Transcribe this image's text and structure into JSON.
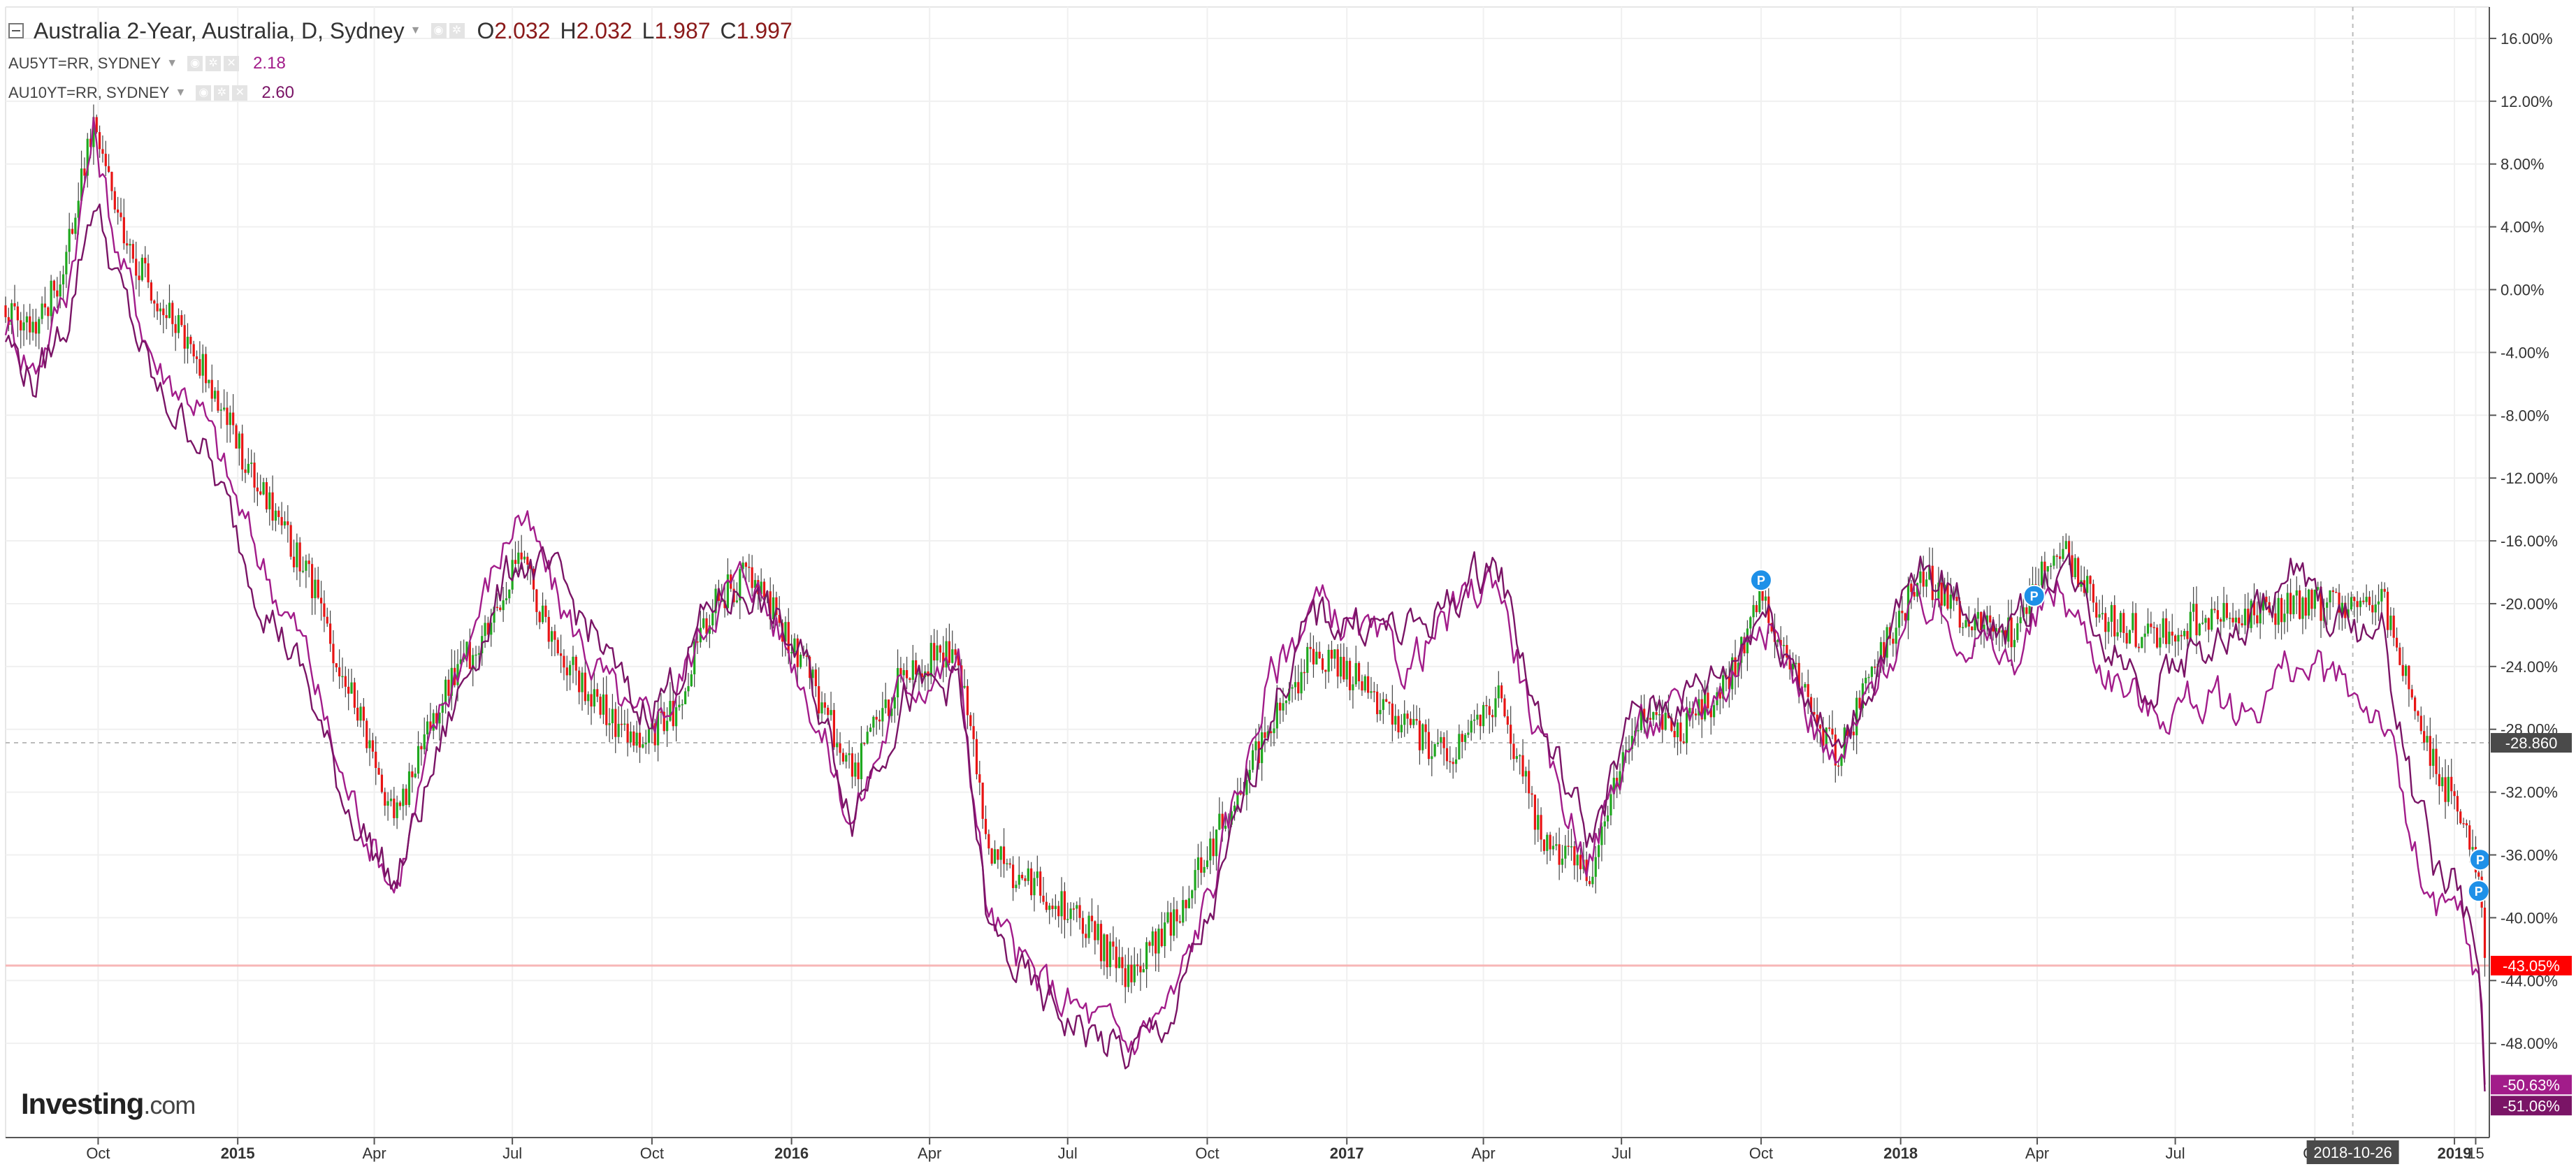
{
  "legend": {
    "main_title": "Australia 2-Year, Australia, D, Sydney",
    "ohlc": [
      {
        "label": "O",
        "value": "2.032"
      },
      {
        "label": "H",
        "value": "2.032"
      },
      {
        "label": "L",
        "value": "1.987"
      },
      {
        "label": "C",
        "value": "1.997"
      }
    ],
    "series": [
      {
        "name": "AU5YT=RR, SYDNEY",
        "value": "2.18",
        "color": "#a21c8a"
      },
      {
        "name": "AU10YT=RR, SYDNEY",
        "value": "2.60",
        "color": "#7a1466"
      }
    ]
  },
  "logo": {
    "text": "Investing",
    "suffix": ".com"
  },
  "crosshair": {
    "date_label": "2018-10-26",
    "value_label": "-28.860"
  },
  "chart_data": {
    "type": "line",
    "ylabel": "",
    "xlabel": "",
    "ylim": [
      -54,
      18
    ],
    "y_ticks": [
      "16.00%",
      "12.00%",
      "8.00%",
      "4.00%",
      "0.00%",
      "-4.00%",
      "-8.00%",
      "-12.00%",
      "-16.00%",
      "-20.00%",
      "-24.00%",
      "-28.00%",
      "-32.00%",
      "-36.00%",
      "-40.00%",
      "-44.00%",
      "-48.00%"
    ],
    "y_tick_values": [
      16,
      12,
      8,
      4,
      0,
      -4,
      -8,
      -12,
      -16,
      -20,
      -24,
      -28,
      -32,
      -36,
      -40,
      -44,
      -48
    ],
    "x_ticks": [
      "Oct",
      "2015",
      "Apr",
      "Jul",
      "Oct",
      "2016",
      "Apr",
      "Jul",
      "Oct",
      "2017",
      "Apr",
      "Jul",
      "Oct",
      "2018",
      "Apr",
      "Jul",
      "Oct",
      "2019",
      "15"
    ],
    "x_tick_dates": [
      "2014-10-01",
      "2015-01-01",
      "2015-04-01",
      "2015-07-01",
      "2015-10-01",
      "2016-01-01",
      "2016-04-01",
      "2016-07-01",
      "2016-10-01",
      "2017-01-01",
      "2017-04-01",
      "2017-07-01",
      "2017-10-01",
      "2018-01-01",
      "2018-04-01",
      "2018-07-01",
      "2018-10-01",
      "2019-01-01",
      "2019-01-15"
    ],
    "x_range": [
      "2014-08-01",
      "2019-01-24"
    ],
    "grid": true,
    "last_value_labels": [
      {
        "text": "-43.05%",
        "value": -43.05,
        "color": "#ff0000"
      },
      {
        "text": "-50.63%",
        "value": -50.63,
        "color": "#a21c8a"
      },
      {
        "text": "-51.06%",
        "value": -51.06,
        "color": "#7a1466"
      }
    ],
    "reference_line": {
      "value": -43.05,
      "color": "#f7b6b6"
    },
    "markers": [
      {
        "label": "P",
        "date": "2017-10-01",
        "value": -18.5
      },
      {
        "label": "P",
        "date": "2018-03-30",
        "value": -19.5
      },
      {
        "label": "P",
        "date": "2019-01-18",
        "value": -36.3
      },
      {
        "label": "P",
        "date": "2019-01-17",
        "value": -38.3
      }
    ],
    "series": [
      {
        "name": "Australia 2-Year",
        "style": "candles",
        "up_color": "#1fa81f",
        "down_color": "#e81414",
        "points": [
          [
            "2014-08-01",
            -1
          ],
          [
            "2014-08-20",
            -3
          ],
          [
            "2014-09-10",
            2
          ],
          [
            "2014-09-28",
            11
          ],
          [
            "2014-10-15",
            4
          ],
          [
            "2014-11-10",
            -1
          ],
          [
            "2014-12-05",
            -4
          ],
          [
            "2015-01-10",
            -12
          ],
          [
            "2015-02-15",
            -18
          ],
          [
            "2015-03-10",
            -24
          ],
          [
            "2015-04-15",
            -34
          ],
          [
            "2015-05-15",
            -26
          ],
          [
            "2015-06-10",
            -22
          ],
          [
            "2015-07-05",
            -17
          ],
          [
            "2015-08-01",
            -23
          ],
          [
            "2015-08-25",
            -26
          ],
          [
            "2015-09-20",
            -29
          ],
          [
            "2015-10-15",
            -27
          ],
          [
            "2015-11-10",
            -20
          ],
          [
            "2015-12-05",
            -18
          ],
          [
            "2016-01-10",
            -24
          ],
          [
            "2016-02-10",
            -31
          ],
          [
            "2016-03-15",
            -24
          ],
          [
            "2016-04-20",
            -23
          ],
          [
            "2016-05-10",
            -36
          ],
          [
            "2016-06-10",
            -38
          ],
          [
            "2016-07-10",
            -40
          ],
          [
            "2016-08-10",
            -44
          ],
          [
            "2016-09-10",
            -40
          ],
          [
            "2016-10-10",
            -34
          ],
          [
            "2016-11-10",
            -28
          ],
          [
            "2016-12-10",
            -23
          ],
          [
            "2017-01-10",
            -25
          ],
          [
            "2017-02-10",
            -28
          ],
          [
            "2017-03-10",
            -30
          ],
          [
            "2017-04-10",
            -26
          ],
          [
            "2017-05-10",
            -35
          ],
          [
            "2017-06-10",
            -37
          ],
          [
            "2017-07-10",
            -27
          ],
          [
            "2017-08-10",
            -28
          ],
          [
            "2017-09-10",
            -25
          ],
          [
            "2017-10-01",
            -19
          ],
          [
            "2017-10-20",
            -24
          ],
          [
            "2017-11-20",
            -30
          ],
          [
            "2017-12-20",
            -23
          ],
          [
            "2018-01-15",
            -18
          ],
          [
            "2018-02-15",
            -21
          ],
          [
            "2018-03-15",
            -22
          ],
          [
            "2018-04-15",
            -16
          ],
          [
            "2018-05-15",
            -21
          ],
          [
            "2018-06-15",
            -22
          ],
          [
            "2018-07-15",
            -21
          ],
          [
            "2018-08-15",
            -21
          ],
          [
            "2018-09-15",
            -20
          ],
          [
            "2018-10-15",
            -20
          ],
          [
            "2018-11-15",
            -20
          ],
          [
            "2018-12-05",
            -26
          ],
          [
            "2018-12-20",
            -31
          ],
          [
            "2019-01-05",
            -33
          ],
          [
            "2019-01-17",
            -37
          ],
          [
            "2019-01-22",
            -43.05
          ]
        ]
      },
      {
        "name": "AU5YT=RR, SYDNEY",
        "style": "line",
        "color": "#a21c8a",
        "points": [
          [
            "2014-08-01",
            -2
          ],
          [
            "2014-08-20",
            -5
          ],
          [
            "2014-09-10",
            0
          ],
          [
            "2014-09-28",
            10
          ],
          [
            "2014-10-15",
            2
          ],
          [
            "2014-11-10",
            -5
          ],
          [
            "2014-12-05",
            -7
          ],
          [
            "2015-01-10",
            -16
          ],
          [
            "2015-02-15",
            -23
          ],
          [
            "2015-03-10",
            -31
          ],
          [
            "2015-04-15",
            -38
          ],
          [
            "2015-05-15",
            -27
          ],
          [
            "2015-06-10",
            -20
          ],
          [
            "2015-07-05",
            -14
          ],
          [
            "2015-08-01",
            -20
          ],
          [
            "2015-08-25",
            -24
          ],
          [
            "2015-09-20",
            -28
          ],
          [
            "2015-10-15",
            -26
          ],
          [
            "2015-11-10",
            -20
          ],
          [
            "2015-12-05",
            -18
          ],
          [
            "2016-01-10",
            -25
          ],
          [
            "2016-02-10",
            -34
          ],
          [
            "2016-03-15",
            -25
          ],
          [
            "2016-04-20",
            -24
          ],
          [
            "2016-05-10",
            -40
          ],
          [
            "2016-06-10",
            -44
          ],
          [
            "2016-07-10",
            -46
          ],
          [
            "2016-08-10",
            -48
          ],
          [
            "2016-09-10",
            -45
          ],
          [
            "2016-10-10",
            -36
          ],
          [
            "2016-11-10",
            -25
          ],
          [
            "2016-12-10",
            -20
          ],
          [
            "2017-01-10",
            -22
          ],
          [
            "2017-02-10",
            -24
          ],
          [
            "2017-03-10",
            -21
          ],
          [
            "2017-04-10",
            -18
          ],
          [
            "2017-05-10",
            -30
          ],
          [
            "2017-06-10",
            -36
          ],
          [
            "2017-07-10",
            -28
          ],
          [
            "2017-08-10",
            -27
          ],
          [
            "2017-09-10",
            -25
          ],
          [
            "2017-10-01",
            -20
          ],
          [
            "2017-10-20",
            -24
          ],
          [
            "2017-11-20",
            -31
          ],
          [
            "2017-12-20",
            -24
          ],
          [
            "2018-01-15",
            -20
          ],
          [
            "2018-02-15",
            -22
          ],
          [
            "2018-03-15",
            -24
          ],
          [
            "2018-04-15",
            -19
          ],
          [
            "2018-05-15",
            -24
          ],
          [
            "2018-06-15",
            -27
          ],
          [
            "2018-07-15",
            -26
          ],
          [
            "2018-08-15",
            -27
          ],
          [
            "2018-09-15",
            -24
          ],
          [
            "2018-10-15",
            -25
          ],
          [
            "2018-11-15",
            -27
          ],
          [
            "2018-12-05",
            -36
          ],
          [
            "2018-12-20",
            -40
          ],
          [
            "2019-01-05",
            -40
          ],
          [
            "2019-01-17",
            -44
          ],
          [
            "2019-01-22",
            -50.63
          ]
        ]
      },
      {
        "name": "AU10YT=RR, SYDNEY",
        "style": "line",
        "color": "#7a1466",
        "points": [
          [
            "2014-08-01",
            -3
          ],
          [
            "2014-08-20",
            -6
          ],
          [
            "2014-09-10",
            -2
          ],
          [
            "2014-09-28",
            6
          ],
          [
            "2014-10-15",
            0
          ],
          [
            "2014-11-10",
            -7
          ],
          [
            "2014-12-05",
            -9
          ],
          [
            "2015-01-10",
            -18
          ],
          [
            "2015-02-15",
            -25
          ],
          [
            "2015-03-10",
            -32
          ],
          [
            "2015-04-15",
            -38
          ],
          [
            "2015-05-15",
            -29
          ],
          [
            "2015-06-10",
            -22
          ],
          [
            "2015-07-05",
            -17
          ],
          [
            "2015-08-01",
            -19
          ],
          [
            "2015-08-25",
            -22
          ],
          [
            "2015-09-20",
            -27
          ],
          [
            "2015-10-15",
            -25
          ],
          [
            "2015-11-10",
            -20
          ],
          [
            "2015-12-05",
            -19
          ],
          [
            "2016-01-10",
            -24
          ],
          [
            "2016-02-10",
            -33
          ],
          [
            "2016-03-15",
            -26
          ],
          [
            "2016-04-20",
            -25
          ],
          [
            "2016-05-10",
            -41
          ],
          [
            "2016-06-10",
            -45
          ],
          [
            "2016-07-10",
            -47
          ],
          [
            "2016-08-10",
            -49
          ],
          [
            "2016-09-10",
            -46
          ],
          [
            "2016-10-10",
            -38
          ],
          [
            "2016-11-10",
            -27
          ],
          [
            "2016-12-10",
            -21
          ],
          [
            "2017-01-10",
            -21
          ],
          [
            "2017-02-10",
            -22
          ],
          [
            "2017-03-10",
            -20
          ],
          [
            "2017-04-10",
            -17
          ],
          [
            "2017-05-10",
            -28
          ],
          [
            "2017-06-10",
            -35
          ],
          [
            "2017-07-10",
            -27
          ],
          [
            "2017-08-10",
            -26
          ],
          [
            "2017-09-10",
            -24
          ],
          [
            "2017-10-01",
            -20
          ],
          [
            "2017-10-20",
            -23
          ],
          [
            "2017-11-20",
            -30
          ],
          [
            "2017-12-20",
            -23
          ],
          [
            "2018-01-15",
            -18
          ],
          [
            "2018-02-15",
            -20
          ],
          [
            "2018-03-15",
            -22
          ],
          [
            "2018-04-15",
            -17
          ],
          [
            "2018-05-15",
            -22
          ],
          [
            "2018-06-15",
            -25
          ],
          [
            "2018-07-15",
            -23
          ],
          [
            "2018-08-15",
            -22
          ],
          [
            "2018-09-15",
            -18
          ],
          [
            "2018-10-15",
            -21
          ],
          [
            "2018-11-15",
            -22
          ],
          [
            "2018-12-05",
            -32
          ],
          [
            "2018-12-20",
            -37
          ],
          [
            "2019-01-05",
            -38
          ],
          [
            "2019-01-17",
            -43
          ],
          [
            "2019-01-22",
            -51.06
          ]
        ]
      }
    ]
  }
}
